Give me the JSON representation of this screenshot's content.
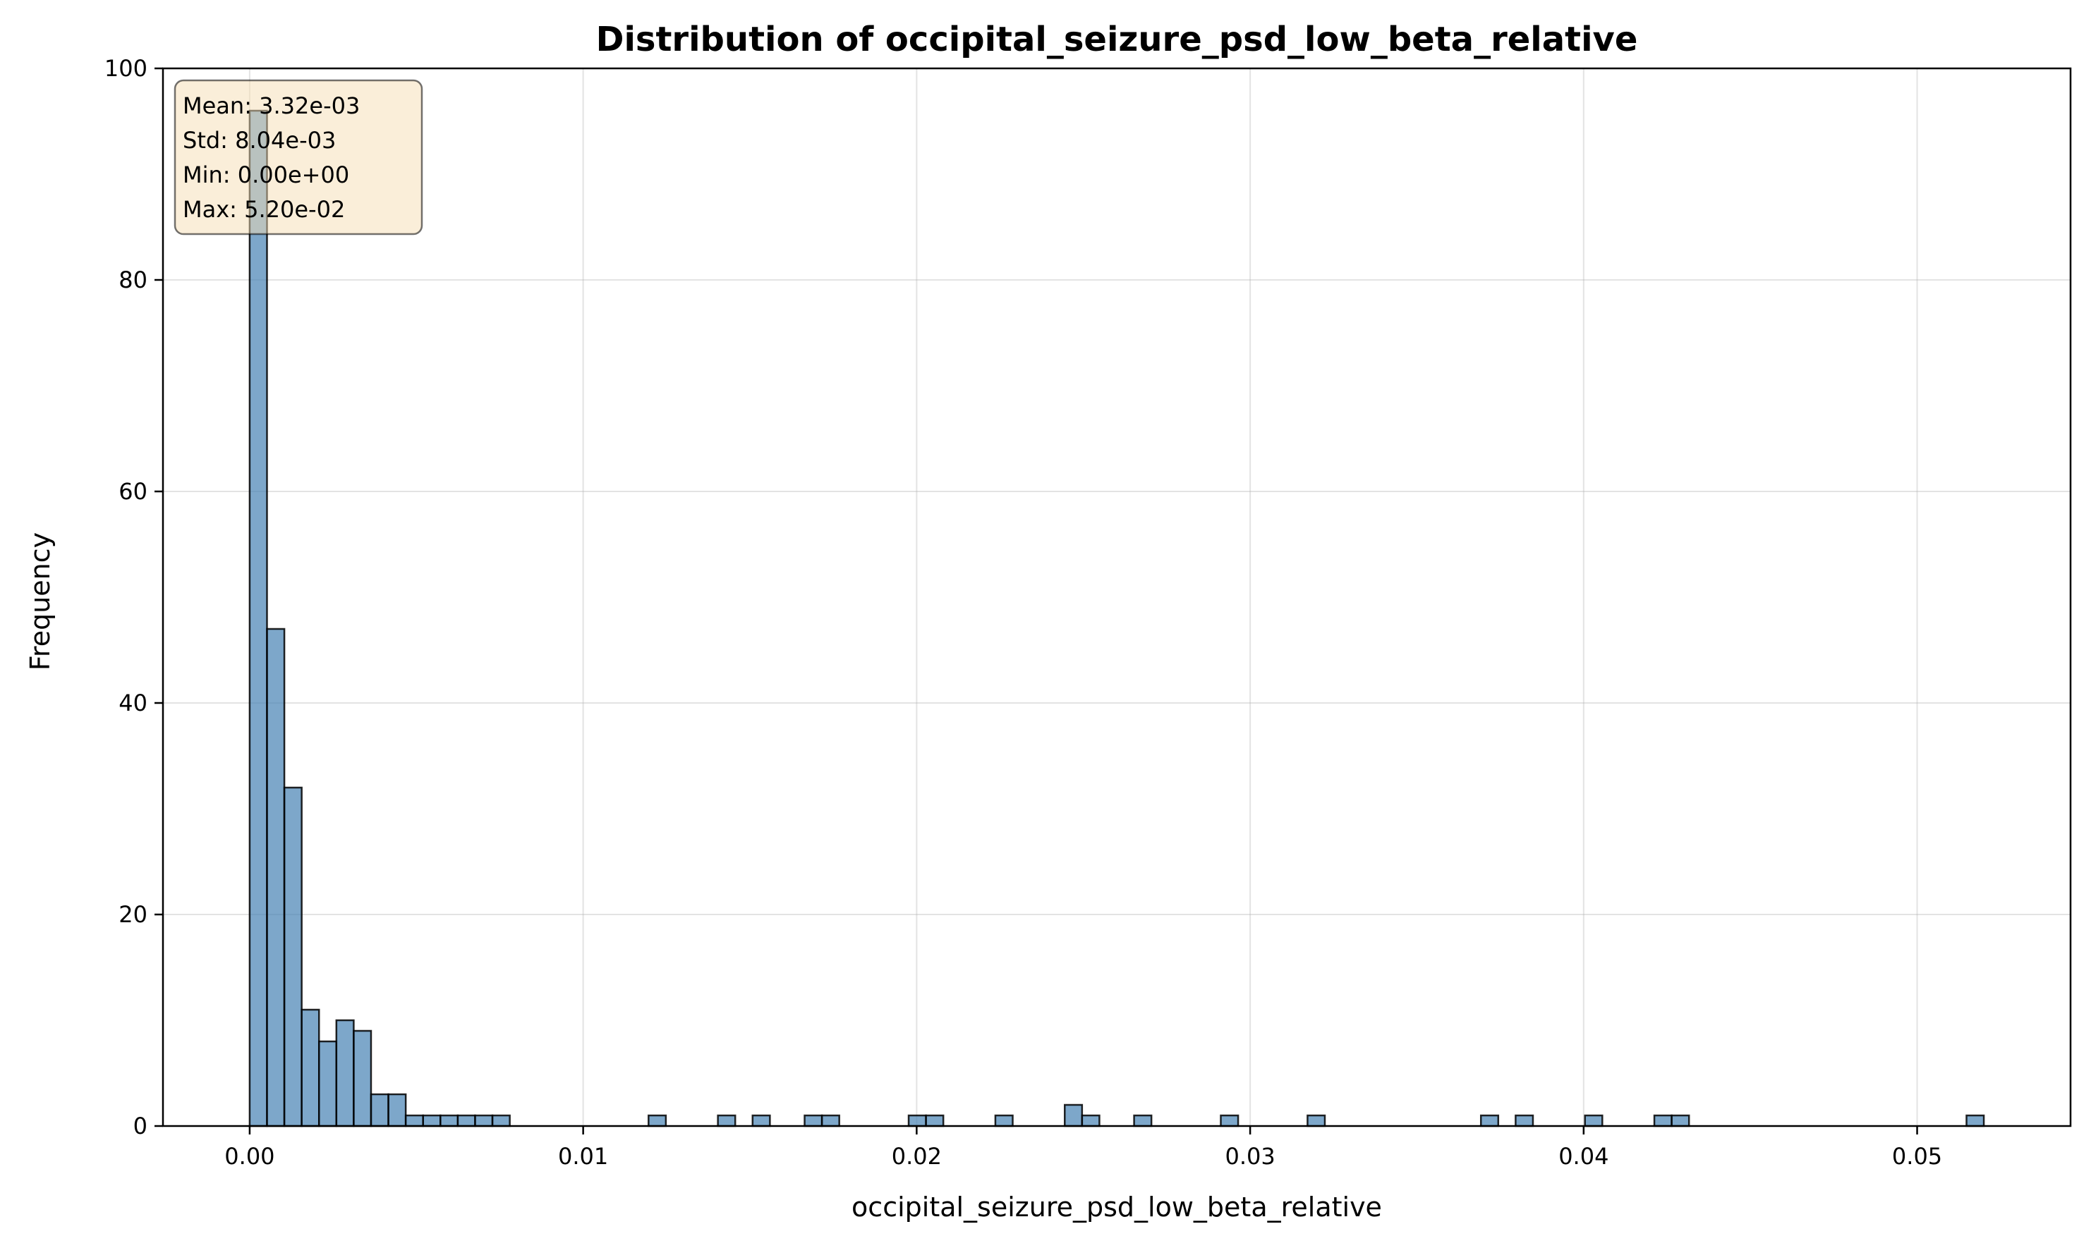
{
  "chart_data": {
    "type": "bar",
    "title": "Distribution of occipital_seizure_psd_low_beta_relative",
    "xlabel": "occipital_seizure_psd_low_beta_relative",
    "ylabel": "Frequency",
    "xlim": [
      -0.0026,
      0.0546
    ],
    "ylim": [
      0,
      100
    ],
    "grid": true,
    "bin_start": 0.0,
    "bin_width": 0.00052,
    "xticks": [
      0.0,
      0.01,
      0.02,
      0.03,
      0.04,
      0.05
    ],
    "xtick_labels": [
      "0.00",
      "0.01",
      "0.02",
      "0.03",
      "0.04",
      "0.05"
    ],
    "yticks": [
      0,
      20,
      40,
      60,
      80,
      100
    ],
    "ytick_labels": [
      "0",
      "20",
      "40",
      "60",
      "80",
      "100"
    ],
    "counts": [
      96,
      47,
      32,
      11,
      8,
      10,
      9,
      3,
      3,
      1,
      1,
      1,
      1,
      1,
      1,
      0,
      0,
      0,
      0,
      0,
      0,
      0,
      0,
      1,
      0,
      0,
      0,
      1,
      0,
      1,
      0,
      0,
      1,
      1,
      0,
      0,
      0,
      0,
      1,
      1,
      0,
      0,
      0,
      1,
      0,
      0,
      0,
      2,
      1,
      0,
      0,
      1,
      0,
      0,
      0,
      0,
      1,
      0,
      0,
      0,
      0,
      1,
      0,
      0,
      0,
      0,
      0,
      0,
      0,
      0,
      0,
      1,
      0,
      1,
      0,
      0,
      0,
      1,
      0,
      0,
      0,
      1,
      1,
      0,
      0,
      0,
      0,
      0,
      0,
      0,
      0,
      0,
      0,
      0,
      0,
      0,
      0,
      0,
      0,
      1
    ],
    "stats": [
      "Mean: 3.32e-03",
      "Std: 8.04e-03",
      "Min: 0.00e+00",
      "Max: 5.20e-02"
    ],
    "colors": {
      "bar_fill": "#4682b4",
      "bar_edge": "#000000",
      "grid": "#b0b0b0",
      "stats_box_fill": "#f5deb3",
      "stats_box_edge": "#000000"
    }
  }
}
